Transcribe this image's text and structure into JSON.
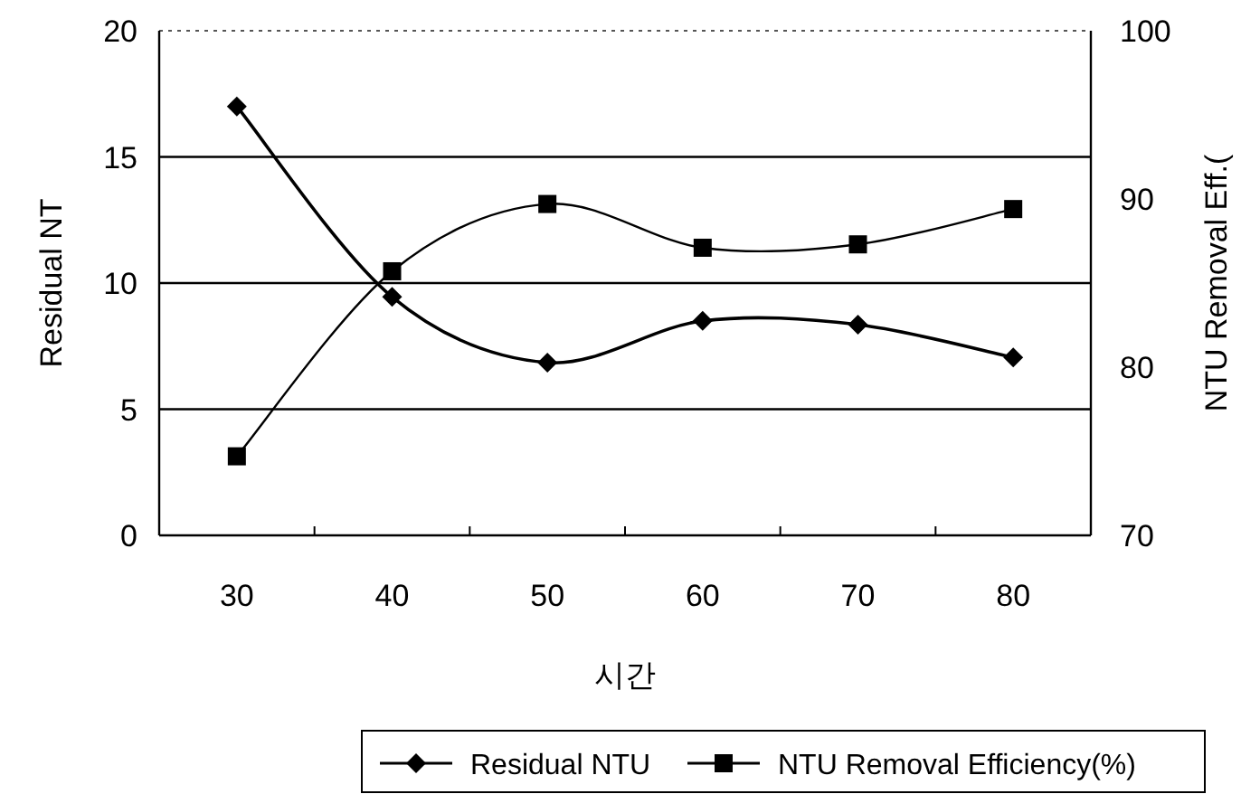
{
  "chart_data": {
    "type": "line",
    "xlabel": "시간",
    "ylabel": "Residual NT",
    "y2label": "NTU Removal Eff.(",
    "categories": [
      "30",
      "40",
      "50",
      "60",
      "70",
      "80"
    ],
    "series": [
      {
        "name": "Residual NTU",
        "color": "#000000",
        "marker": "diamond",
        "values": [
          17.0,
          9.45,
          6.85,
          8.5,
          8.35,
          7.05
        ]
      },
      {
        "name": "NTU Removal Efficiency(%)",
        "color": "#000000",
        "marker": "square",
        "axis": "y2",
        "values": [
          74.7,
          85.7,
          89.7,
          87.1,
          87.3,
          89.4
        ]
      }
    ],
    "ylim": [
      0,
      20
    ],
    "yticks": [
      0,
      5,
      10,
      15,
      20
    ],
    "y2lim": [
      70,
      100
    ],
    "y2ticks": [
      70,
      80,
      90,
      100
    ],
    "grid": "y",
    "legend": "bottom",
    "line_style": "solid"
  }
}
